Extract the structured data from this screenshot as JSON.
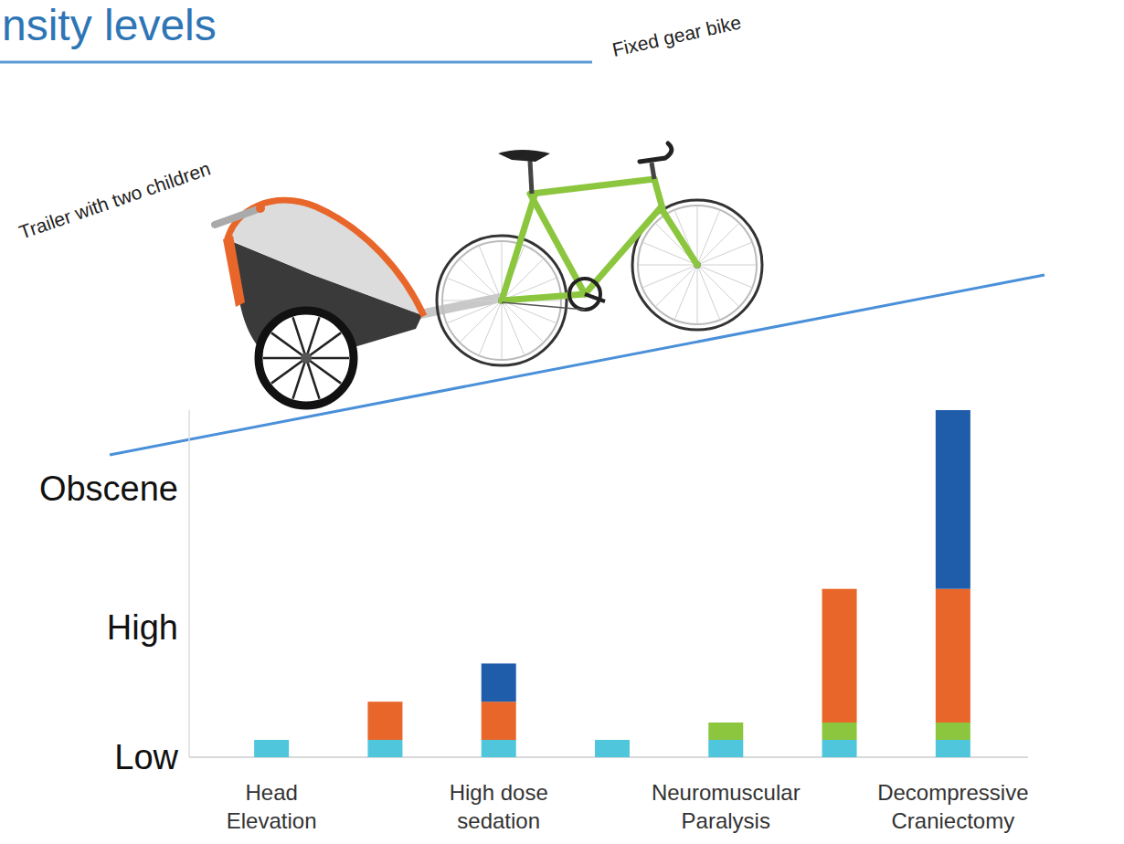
{
  "chart_data": {
    "type": "bar",
    "title": "nsity levels",
    "annotations": [
      "Trailer with two children",
      "Fixed gear bike"
    ],
    "categories": [
      "Head Elevation",
      null,
      "High dose sedation",
      null,
      "Neuromuscular Paralysis",
      null,
      "Decompressive Craniectomy"
    ],
    "series": [
      {
        "color": "#4fc6dc",
        "values": [
          1,
          1,
          1,
          1,
          1,
          1,
          1
        ]
      },
      {
        "color": "#8cc63f",
        "values": [
          null,
          null,
          null,
          null,
          1,
          1,
          1
        ]
      },
      {
        "color": "#e8662a",
        "values": [
          null,
          2.2,
          2.2,
          null,
          null,
          7.7,
          7.7
        ]
      },
      {
        "color": "#1f5dab",
        "values": [
          null,
          null,
          2.2,
          null,
          null,
          null,
          10.3
        ]
      }
    ],
    "stacked": true,
    "ylim": [
      0,
      20
    ],
    "yticks": [
      {
        "value": 0,
        "label": "Low"
      },
      {
        "value": 7.5,
        "label": "High"
      },
      {
        "value": 15.5,
        "label": "Obscene"
      }
    ],
    "grid": false
  }
}
